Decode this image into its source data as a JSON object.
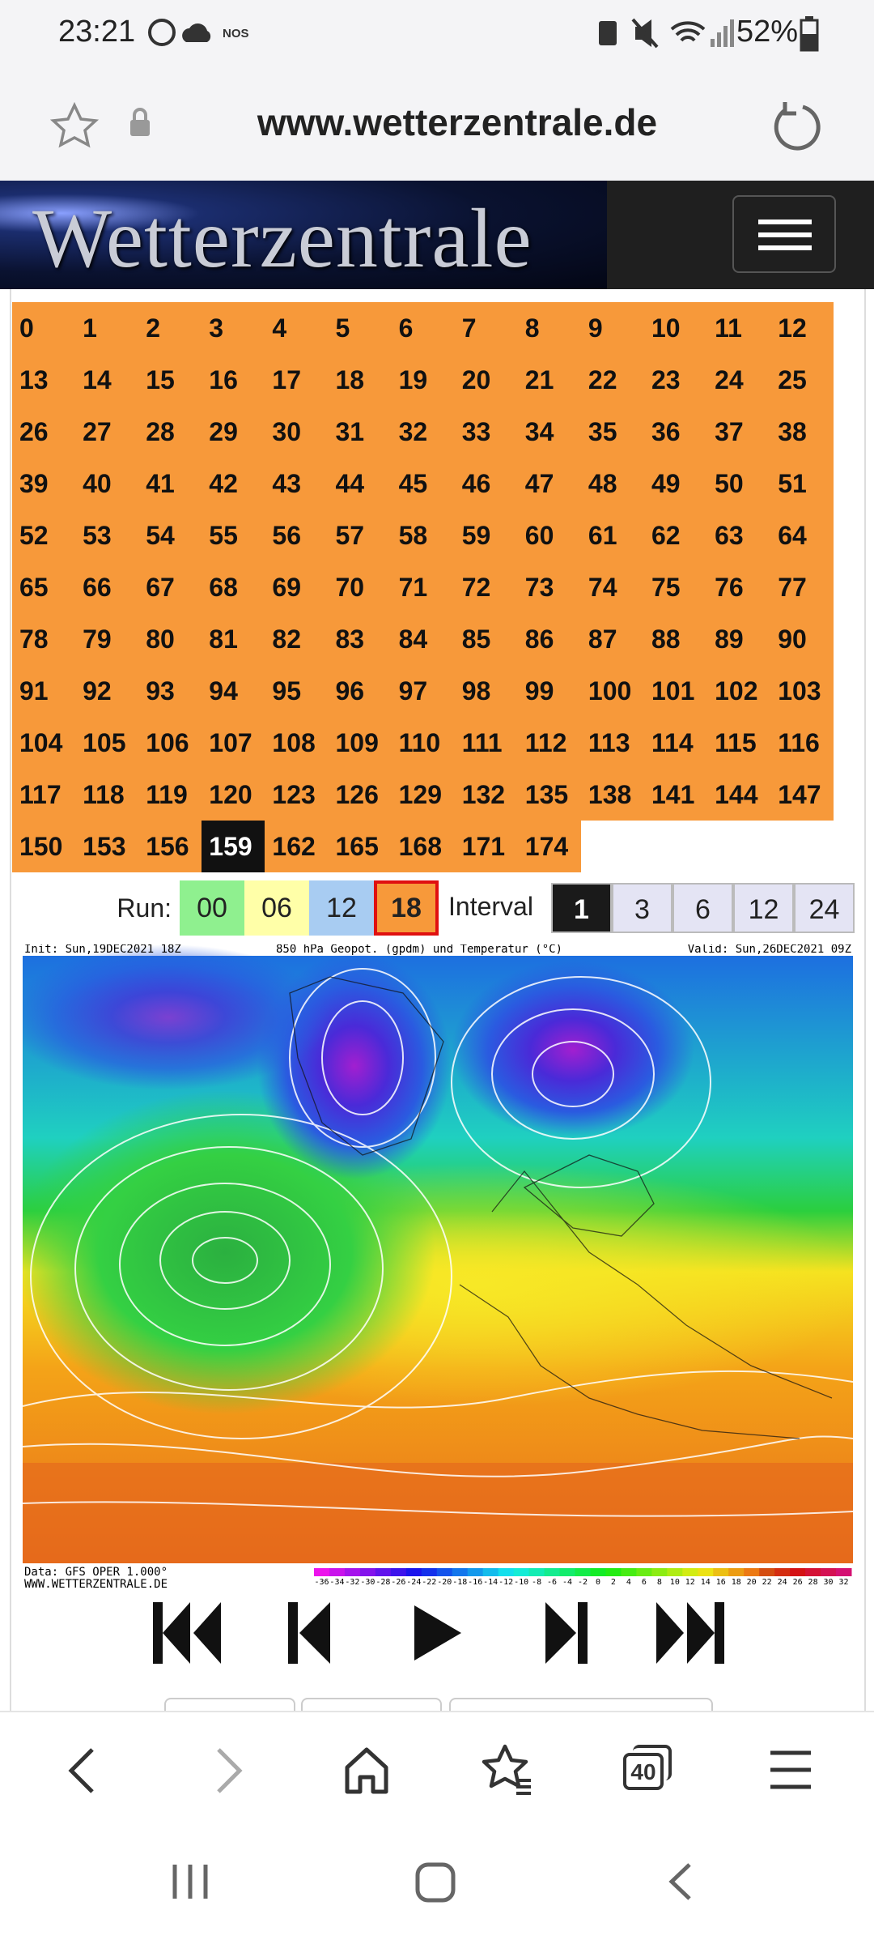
{
  "status_bar": {
    "time": "23:21",
    "carrier": "NOS",
    "battery": "52%"
  },
  "address_bar": {
    "url": "www.wetterzentrale.de"
  },
  "header": {
    "logo": "Wetterzentrale"
  },
  "hours": {
    "items": [
      0,
      1,
      2,
      3,
      4,
      5,
      6,
      7,
      8,
      9,
      10,
      11,
      12,
      13,
      14,
      15,
      16,
      17,
      18,
      19,
      20,
      21,
      22,
      23,
      24,
      25,
      26,
      27,
      28,
      29,
      30,
      31,
      32,
      33,
      34,
      35,
      36,
      37,
      38,
      39,
      40,
      41,
      42,
      43,
      44,
      45,
      46,
      47,
      48,
      49,
      50,
      51,
      52,
      53,
      54,
      55,
      56,
      57,
      58,
      59,
      60,
      61,
      62,
      63,
      64,
      65,
      66,
      67,
      68,
      69,
      70,
      71,
      72,
      73,
      74,
      75,
      76,
      77,
      78,
      79,
      80,
      81,
      82,
      83,
      84,
      85,
      86,
      87,
      88,
      89,
      90,
      91,
      92,
      93,
      94,
      95,
      96,
      97,
      98,
      99,
      100,
      101,
      102,
      103,
      104,
      105,
      106,
      107,
      108,
      109,
      110,
      111,
      112,
      113,
      114,
      115,
      116,
      117,
      118,
      119,
      120,
      123,
      126,
      129,
      132,
      135,
      138,
      141,
      144,
      147,
      150,
      153,
      156,
      159,
      162,
      165,
      168,
      171,
      174
    ],
    "selected_index": 133
  },
  "run": {
    "label": "Run:",
    "options": [
      "00",
      "06",
      "12",
      "18"
    ],
    "selected_index": 3
  },
  "interval": {
    "label": "Interval",
    "options": [
      "1",
      "3",
      "6",
      "12",
      "24"
    ],
    "selected_index": 0
  },
  "map": {
    "init": "Init: Sun,19DEC2021 18Z",
    "title": "850 hPa Geopot. (gpdm) und Temperatur (°C)",
    "valid": "Valid: Sun,26DEC2021 09Z",
    "data_source": "Data: GFS OPER 1.000°",
    "site": "WWW.WETTERZENTRALE.DE",
    "colorbar_labels": [
      -36,
      -34,
      -32,
      -30,
      -28,
      -26,
      -24,
      -22,
      -20,
      -18,
      -16,
      -14,
      -12,
      -10,
      -8,
      -6,
      -4,
      -2,
      0,
      2,
      4,
      6,
      8,
      10,
      12,
      14,
      16,
      18,
      20,
      22,
      24,
      26,
      28,
      30,
      32
    ]
  },
  "toolbar": {
    "tabs_count": "40"
  }
}
